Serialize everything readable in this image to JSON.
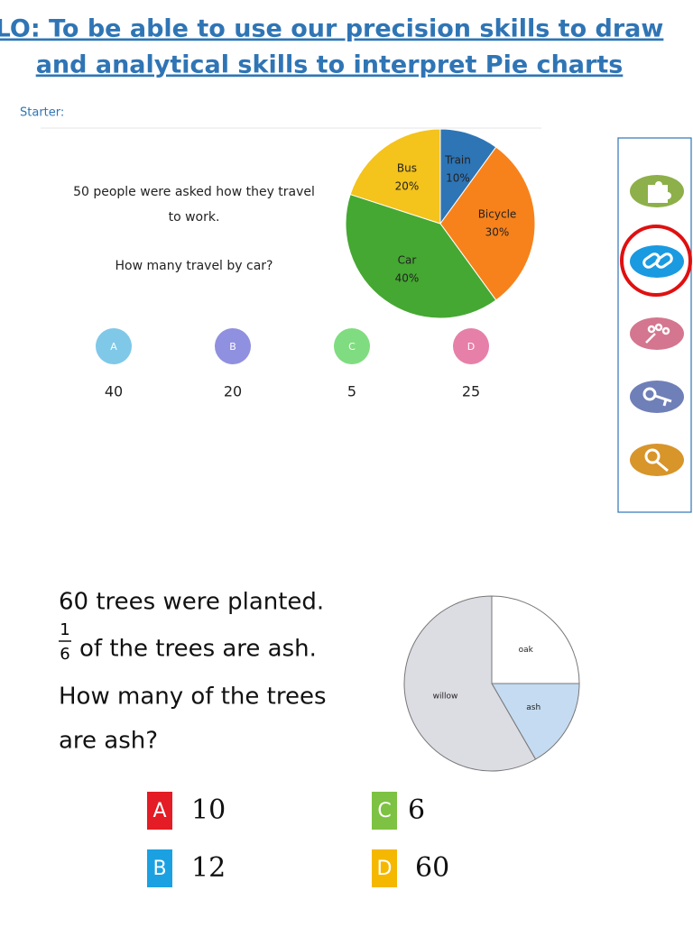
{
  "header": {
    "title_lines": [
      "LO: To be able to use our precision skills to draw",
      "and analytical skills to interpret Pie charts"
    ]
  },
  "starter": {
    "label": "Starter:",
    "question_lines": [
      "50 people were asked how they travel",
      "to work.",
      "How many travel by car?"
    ],
    "pie": {
      "type": "pie",
      "categories": [
        "Train",
        "Bicycle",
        "Car",
        "Bus"
      ],
      "values": [
        10,
        30,
        40,
        20
      ],
      "value_labels": [
        "10%",
        "30%",
        "40%",
        "20%"
      ],
      "colors": [
        "#2e75b6",
        "#f7821b",
        "#45a832",
        "#f4c31c"
      ]
    },
    "options": [
      {
        "letter": "A",
        "answer": "40",
        "color": "#7fc8e8"
      },
      {
        "letter": "B",
        "answer": "20",
        "color": "#9090e0"
      },
      {
        "letter": "C",
        "answer": "5",
        "color": "#80dc80"
      },
      {
        "letter": "D",
        "answer": "25",
        "color": "#e680a8"
      }
    ]
  },
  "question2": {
    "lines": [
      "60 trees were planted.",
      "of the trees are ash.",
      "How many of the trees",
      "are ash?"
    ],
    "fraction": {
      "numerator": "1",
      "denominator": "6"
    },
    "pie": {
      "type": "pie",
      "categories": [
        "oak",
        "ash",
        "willow"
      ],
      "values": [
        90,
        60,
        210
      ],
      "colors": [
        "#ffffff",
        "#c4dbf1",
        "#dcdce3"
      ]
    },
    "options": [
      {
        "letter": "A",
        "answer": "10",
        "color": "#e31c25"
      },
      {
        "letter": "B",
        "answer": "12",
        "color": "#1ba1e2"
      },
      {
        "letter": "C",
        "answer": "6",
        "color": "#7dc242"
      },
      {
        "letter": "D",
        "answer": "60",
        "color": "#f5b800"
      }
    ]
  }
}
